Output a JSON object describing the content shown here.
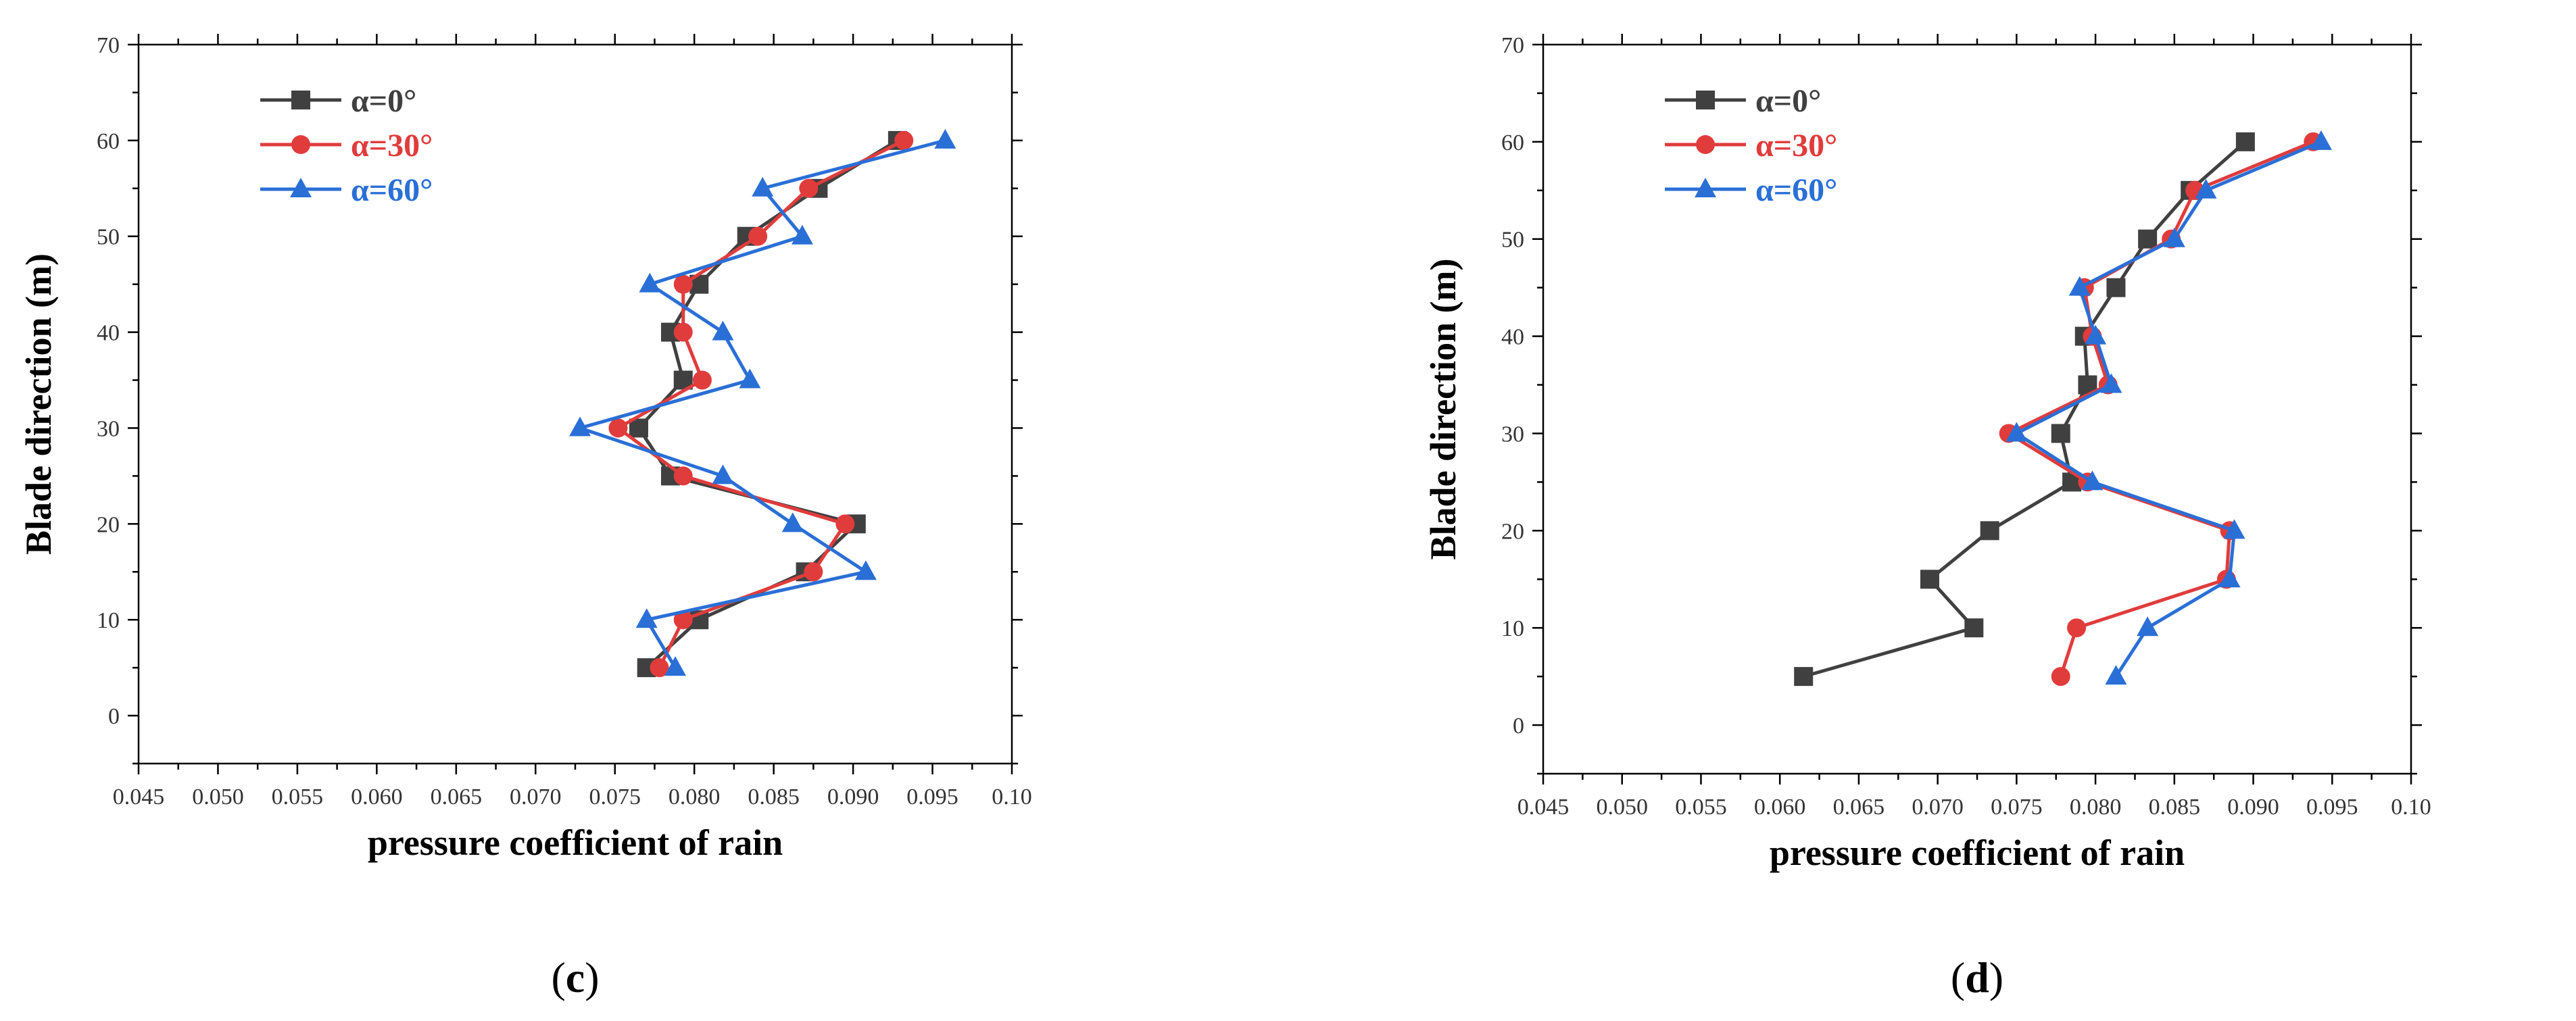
{
  "colors": {
    "alpha_0": "#404040",
    "alpha_30": "#e03c3c",
    "alpha_60": "#2a6fd6"
  },
  "chart_data": [
    {
      "type": "line",
      "caption": "(c)",
      "caption_letter": "c",
      "xlabel": "pressure coefficient of rain",
      "ylabel": "Blade direction (m)",
      "xlim": [
        0.045,
        0.1
      ],
      "ylim": [
        -5,
        70
      ],
      "xticks": [
        0.045,
        0.05,
        0.055,
        0.06,
        0.065,
        0.07,
        0.075,
        0.08,
        0.085,
        0.09,
        0.095,
        0.1
      ],
      "xtick_labels": [
        "0.045",
        "0.050",
        "0.055",
        "0.060",
        "0.065",
        "0.070",
        "0.075",
        "0.080",
        "0.085",
        "0.090",
        "0.095",
        "0.10"
      ],
      "yticks": [
        0,
        10,
        20,
        30,
        40,
        50,
        60,
        70
      ],
      "ytick_labels": [
        "0",
        "10",
        "20",
        "30",
        "40",
        "50",
        "60",
        "70"
      ],
      "legend": "top-left",
      "series": [
        {
          "name": "α=0°",
          "marker": "square",
          "color_key": "alpha_0",
          "points": [
            [
              0.077,
              5
            ],
            [
              0.0803,
              10
            ],
            [
              0.087,
              15
            ],
            [
              0.0902,
              20
            ],
            [
              0.0785,
              25
            ],
            [
              0.0765,
              30
            ],
            [
              0.0793,
              35
            ],
            [
              0.0785,
              40
            ],
            [
              0.0803,
              45
            ],
            [
              0.0833,
              50
            ],
            [
              0.0878,
              55
            ],
            [
              0.0928,
              60
            ]
          ]
        },
        {
          "name": "α=30°",
          "marker": "circle",
          "color_key": "alpha_30",
          "points": [
            [
              0.0778,
              5
            ],
            [
              0.0793,
              10
            ],
            [
              0.0875,
              15
            ],
            [
              0.0895,
              20
            ],
            [
              0.0793,
              25
            ],
            [
              0.0752,
              30
            ],
            [
              0.0805,
              35
            ],
            [
              0.0793,
              40
            ],
            [
              0.0793,
              45
            ],
            [
              0.084,
              50
            ],
            [
              0.0872,
              55
            ],
            [
              0.0932,
              60
            ]
          ]
        },
        {
          "name": "α=60°",
          "marker": "triangle",
          "color_key": "alpha_60",
          "points": [
            [
              0.0788,
              5
            ],
            [
              0.077,
              10
            ],
            [
              0.0908,
              15
            ],
            [
              0.0862,
              20
            ],
            [
              0.0818,
              25
            ],
            [
              0.0728,
              30
            ],
            [
              0.0835,
              35
            ],
            [
              0.0818,
              40
            ],
            [
              0.0772,
              45
            ],
            [
              0.0868,
              50
            ],
            [
              0.0843,
              55
            ],
            [
              0.0958,
              60
            ]
          ]
        }
      ]
    },
    {
      "type": "line",
      "caption": "(d)",
      "caption_letter": "d",
      "xlabel": "pressure coefficient of rain",
      "ylabel": "Blade direction (m)",
      "xlim": [
        0.045,
        0.1
      ],
      "ylim": [
        -5,
        70
      ],
      "xticks": [
        0.045,
        0.05,
        0.055,
        0.06,
        0.065,
        0.07,
        0.075,
        0.08,
        0.085,
        0.09,
        0.095,
        0.1
      ],
      "xtick_labels": [
        "0.045",
        "0.050",
        "0.055",
        "0.060",
        "0.065",
        "0.070",
        "0.075",
        "0.080",
        "0.085",
        "0.090",
        "0.095",
        "0.10"
      ],
      "yticks": [
        0,
        10,
        20,
        30,
        40,
        50,
        60,
        70
      ],
      "ytick_labels": [
        "0",
        "10",
        "20",
        "30",
        "40",
        "50",
        "60",
        "70"
      ],
      "legend": "top-left",
      "series": [
        {
          "name": "α=0°",
          "marker": "square",
          "color_key": "alpha_0",
          "points": [
            [
              0.0615,
              5
            ],
            [
              0.0723,
              10
            ],
            [
              0.0695,
              15
            ],
            [
              0.0733,
              20
            ],
            [
              0.0785,
              25
            ],
            [
              0.0778,
              30
            ],
            [
              0.0795,
              35
            ],
            [
              0.0793,
              40
            ],
            [
              0.0813,
              45
            ],
            [
              0.0833,
              50
            ],
            [
              0.086,
              55
            ],
            [
              0.0895,
              60
            ]
          ]
        },
        {
          "name": "α=30°",
          "marker": "circle",
          "color_key": "alpha_30",
          "points": [
            [
              0.0778,
              5
            ],
            [
              0.0788,
              10
            ],
            [
              0.0883,
              15
            ],
            [
              0.0885,
              20
            ],
            [
              0.0795,
              25
            ],
            [
              0.0745,
              30
            ],
            [
              0.0808,
              35
            ],
            [
              0.0798,
              40
            ],
            [
              0.0793,
              45
            ],
            [
              0.0848,
              50
            ],
            [
              0.0863,
              55
            ],
            [
              0.0938,
              60
            ]
          ]
        },
        {
          "name": "α=60°",
          "marker": "triangle",
          "color_key": "alpha_60",
          "points": [
            [
              0.0813,
              5
            ],
            [
              0.0833,
              10
            ],
            [
              0.0885,
              15
            ],
            [
              0.0888,
              20
            ],
            [
              0.0798,
              25
            ],
            [
              0.075,
              30
            ],
            [
              0.081,
              35
            ],
            [
              0.08,
              40
            ],
            [
              0.079,
              45
            ],
            [
              0.085,
              50
            ],
            [
              0.087,
              55
            ],
            [
              0.0943,
              60
            ]
          ]
        }
      ]
    }
  ]
}
